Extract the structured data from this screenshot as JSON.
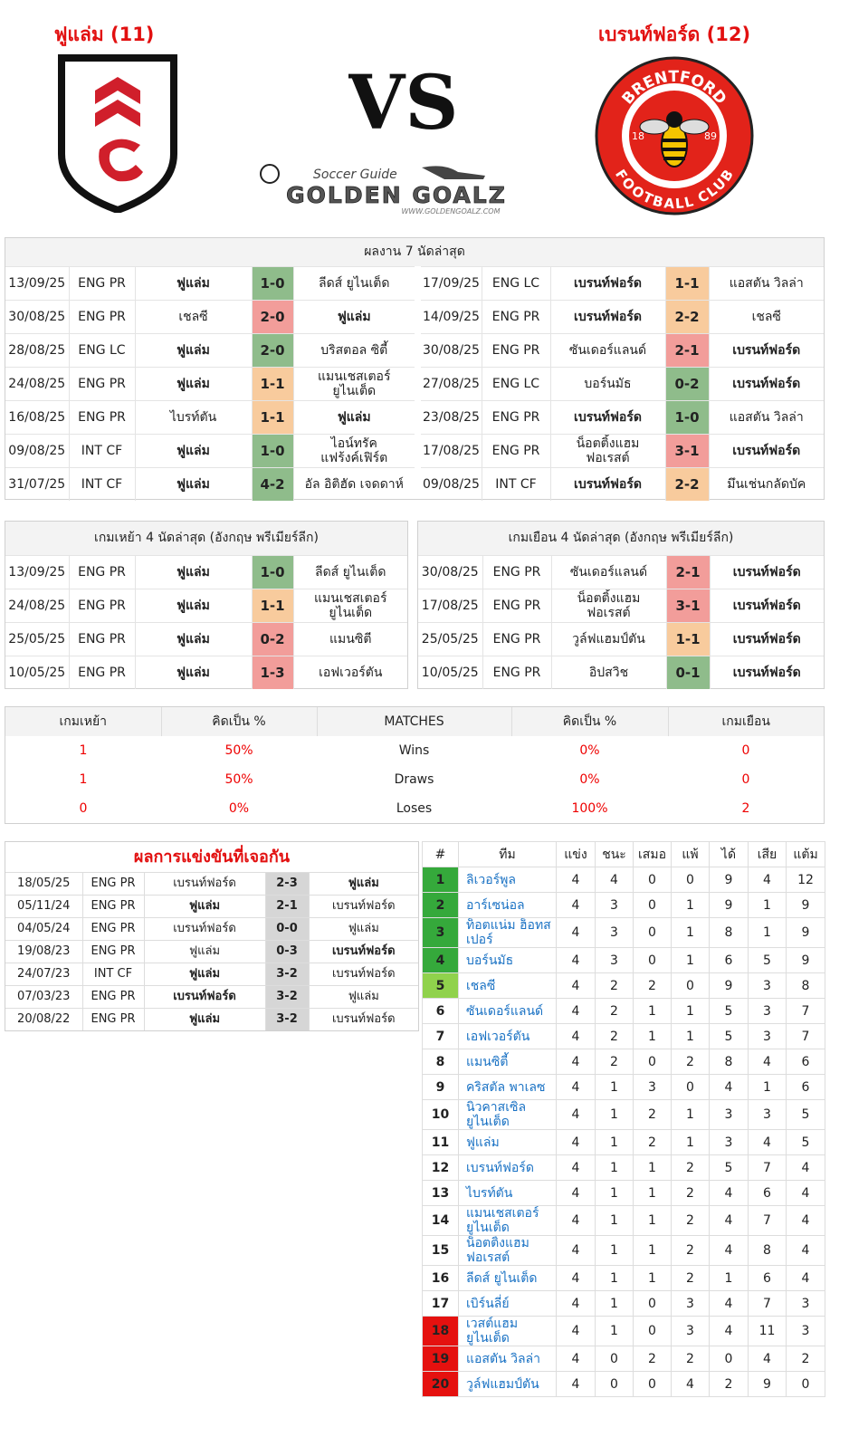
{
  "header": {
    "home_title": "ฟูแล่ม (11)",
    "away_title": "เบรนท์ฟอร์ด (12)",
    "vs": "VS",
    "logo": {
      "tagline": "Soccer Guide",
      "name": "GOLDEN GOALZ",
      "url": "WWW.GOLDENGOALZ.COM"
    },
    "away_crest": {
      "top": "BRENTFORD",
      "bottom": "FOOTBALL CLUB",
      "left": "18",
      "right": "89"
    }
  },
  "last7": {
    "title": "ผลงาน 7 นัดล่าสุด",
    "home": [
      {
        "date": "13/09/25",
        "comp": "ENG PR",
        "home": "ฟูแล่ม",
        "score": "1-0",
        "away": "ลีดส์ ยูไนเต็ด",
        "bold": "home",
        "result": "win"
      },
      {
        "date": "30/08/25",
        "comp": "ENG PR",
        "home": "เชลซี",
        "score": "2-0",
        "away": "ฟูแล่ม",
        "bold": "away",
        "result": "loss"
      },
      {
        "date": "28/08/25",
        "comp": "ENG LC",
        "home": "ฟูแล่ม",
        "score": "2-0",
        "away": "บริสตอล ซิตี้",
        "bold": "home",
        "result": "win"
      },
      {
        "date": "24/08/25",
        "comp": "ENG PR",
        "home": "ฟูแล่ม",
        "score": "1-1",
        "away": "แมนเชสเตอร์ ยูไนเต็ด",
        "bold": "home",
        "result": "draw"
      },
      {
        "date": "16/08/25",
        "comp": "ENG PR",
        "home": "ไบรท์ตัน",
        "score": "1-1",
        "away": "ฟูแล่ม",
        "bold": "away",
        "result": "draw"
      },
      {
        "date": "09/08/25",
        "comp": "INT CF",
        "home": "ฟูแล่ม",
        "score": "1-0",
        "away": "ไอน์ทรัค แฟร้งค์เฟิร์ต",
        "bold": "home",
        "result": "win"
      },
      {
        "date": "31/07/25",
        "comp": "INT CF",
        "home": "ฟูแล่ม",
        "score": "4-2",
        "away": "อัล อิติฮัด เจดดาห์",
        "bold": "home",
        "result": "win"
      }
    ],
    "away": [
      {
        "date": "17/09/25",
        "comp": "ENG LC",
        "home": "เบรนท์ฟอร์ด",
        "score": "1-1",
        "away": "แอสตัน วิลล่า",
        "bold": "home",
        "result": "draw"
      },
      {
        "date": "14/09/25",
        "comp": "ENG PR",
        "home": "เบรนท์ฟอร์ด",
        "score": "2-2",
        "away": "เชลซี",
        "bold": "home",
        "result": "draw"
      },
      {
        "date": "30/08/25",
        "comp": "ENG PR",
        "home": "ซันเดอร์แลนด์",
        "score": "2-1",
        "away": "เบรนท์ฟอร์ด",
        "bold": "away",
        "result": "loss"
      },
      {
        "date": "27/08/25",
        "comp": "ENG LC",
        "home": "บอร์นมัธ",
        "score": "0-2",
        "away": "เบรนท์ฟอร์ด",
        "bold": "away",
        "result": "win"
      },
      {
        "date": "23/08/25",
        "comp": "ENG PR",
        "home": "เบรนท์ฟอร์ด",
        "score": "1-0",
        "away": "แอสตัน วิลล่า",
        "bold": "home",
        "result": "win"
      },
      {
        "date": "17/08/25",
        "comp": "ENG PR",
        "home": "น็อตติ้งแฮม ฟอเรสต์",
        "score": "3-1",
        "away": "เบรนท์ฟอร์ด",
        "bold": "away",
        "result": "loss"
      },
      {
        "date": "09/08/25",
        "comp": "INT CF",
        "home": "เบรนท์ฟอร์ด",
        "score": "2-2",
        "away": "มึนเช่นกลัดบัค",
        "bold": "home",
        "result": "draw"
      }
    ]
  },
  "venue4": {
    "home": {
      "title": "เกมเหย้า 4 นัดล่าสุด (อังกฤษ พรีเมียร์ลีก)",
      "rows": [
        {
          "date": "13/09/25",
          "comp": "ENG PR",
          "home": "ฟูแล่ม",
          "score": "1-0",
          "away": "ลีดส์ ยูไนเต็ด",
          "bold": "home",
          "result": "win"
        },
        {
          "date": "24/08/25",
          "comp": "ENG PR",
          "home": "ฟูแล่ม",
          "score": "1-1",
          "away": "แมนเชสเตอร์ ยูไนเต็ด",
          "bold": "home",
          "result": "draw"
        },
        {
          "date": "25/05/25",
          "comp": "ENG PR",
          "home": "ฟูแล่ม",
          "score": "0-2",
          "away": "แมนซิตี",
          "bold": "home",
          "result": "loss"
        },
        {
          "date": "10/05/25",
          "comp": "ENG PR",
          "home": "ฟูแล่ม",
          "score": "1-3",
          "away": "เอฟเวอร์ตัน",
          "bold": "home",
          "result": "loss"
        }
      ]
    },
    "away": {
      "title": "เกมเยือน 4 นัดล่าสุด (อังกฤษ พรีเมียร์ลีก)",
      "rows": [
        {
          "date": "30/08/25",
          "comp": "ENG PR",
          "home": "ซันเดอร์แลนด์",
          "score": "2-1",
          "away": "เบรนท์ฟอร์ด",
          "bold": "away",
          "result": "loss"
        },
        {
          "date": "17/08/25",
          "comp": "ENG PR",
          "home": "น็อตติ้งแฮม ฟอเรสต์",
          "score": "3-1",
          "away": "เบรนท์ฟอร์ด",
          "bold": "away",
          "result": "loss"
        },
        {
          "date": "25/05/25",
          "comp": "ENG PR",
          "home": "วูล์ฟแฮมป์ตัน",
          "score": "1-1",
          "away": "เบรนท์ฟอร์ด",
          "bold": "away",
          "result": "draw"
        },
        {
          "date": "10/05/25",
          "comp": "ENG PR",
          "home": "อิปสวิช",
          "score": "0-1",
          "away": "เบรนท์ฟอร์ด",
          "bold": "away",
          "result": "win"
        }
      ]
    }
  },
  "stats": {
    "headers": [
      "เกมเหย้า",
      "คิดเป็น %",
      "MATCHES",
      "คิดเป็น %",
      "เกมเยือน"
    ],
    "rows": [
      [
        1,
        "50%",
        "Wins",
        "0%",
        0
      ],
      [
        1,
        "50%",
        "Draws",
        "0%",
        0
      ],
      [
        0,
        "0%",
        "Loses",
        "100%",
        2
      ]
    ]
  },
  "h2h": {
    "title": "ผลการแข่งขันที่เจอกัน",
    "rows": [
      {
        "date": "18/05/25",
        "comp": "ENG PR",
        "home": "เบรนท์ฟอร์ด",
        "score": "2-3",
        "away": "ฟูแล่ม",
        "bold": "away"
      },
      {
        "date": "05/11/24",
        "comp": "ENG PR",
        "home": "ฟูแล่ม",
        "score": "2-1",
        "away": "เบรนท์ฟอร์ด",
        "bold": "home"
      },
      {
        "date": "04/05/24",
        "comp": "ENG PR",
        "home": "เบรนท์ฟอร์ด",
        "score": "0-0",
        "away": "ฟูแล่ม",
        "bold": null
      },
      {
        "date": "19/08/23",
        "comp": "ENG PR",
        "home": "ฟูแล่ม",
        "score": "0-3",
        "away": "เบรนท์ฟอร์ด",
        "bold": "away"
      },
      {
        "date": "24/07/23",
        "comp": "INT CF",
        "home": "ฟูแล่ม",
        "score": "3-2",
        "away": "เบรนท์ฟอร์ด",
        "bold": "home"
      },
      {
        "date": "07/03/23",
        "comp": "ENG PR",
        "home": "เบรนท์ฟอร์ด",
        "score": "3-2",
        "away": "ฟูแล่ม",
        "bold": "home"
      },
      {
        "date": "20/08/22",
        "comp": "ENG PR",
        "home": "ฟูแล่ม",
        "score": "3-2",
        "away": "เบรนท์ฟอร์ด",
        "bold": "home"
      }
    ]
  },
  "standings": {
    "headers": [
      "#",
      "ทีม",
      "แข่ง",
      "ชนะ",
      "เสมอ",
      "แพ้",
      "ได้",
      "เสีย",
      "แต้ม"
    ],
    "rows": [
      {
        "pos": 1,
        "team": "ลิเวอร์พูล",
        "p": 4,
        "w": 4,
        "d": 0,
        "l": 0,
        "gf": 9,
        "ga": 4,
        "pts": 12,
        "zone": "cl"
      },
      {
        "pos": 2,
        "team": "อาร์เซน่อล",
        "p": 4,
        "w": 3,
        "d": 0,
        "l": 1,
        "gf": 9,
        "ga": 1,
        "pts": 9,
        "zone": "cl"
      },
      {
        "pos": 3,
        "team": "ท็อตแน่ม ฮ็อทสเปอร์",
        "p": 4,
        "w": 3,
        "d": 0,
        "l": 1,
        "gf": 8,
        "ga": 1,
        "pts": 9,
        "zone": "cl"
      },
      {
        "pos": 4,
        "team": "บอร์นมัธ",
        "p": 4,
        "w": 3,
        "d": 0,
        "l": 1,
        "gf": 6,
        "ga": 5,
        "pts": 9,
        "zone": "cl"
      },
      {
        "pos": 5,
        "team": "เชลซี",
        "p": 4,
        "w": 2,
        "d": 2,
        "l": 0,
        "gf": 9,
        "ga": 3,
        "pts": 8,
        "zone": "el"
      },
      {
        "pos": 6,
        "team": "ซันเดอร์แลนด์",
        "p": 4,
        "w": 2,
        "d": 1,
        "l": 1,
        "gf": 5,
        "ga": 3,
        "pts": 7,
        "zone": null
      },
      {
        "pos": 7,
        "team": "เอฟเวอร์ตัน",
        "p": 4,
        "w": 2,
        "d": 1,
        "l": 1,
        "gf": 5,
        "ga": 3,
        "pts": 7,
        "zone": null
      },
      {
        "pos": 8,
        "team": "แมนซิตี้",
        "p": 4,
        "w": 2,
        "d": 0,
        "l": 2,
        "gf": 8,
        "ga": 4,
        "pts": 6,
        "zone": null
      },
      {
        "pos": 9,
        "team": "คริสตัล พาเลซ",
        "p": 4,
        "w": 1,
        "d": 3,
        "l": 0,
        "gf": 4,
        "ga": 1,
        "pts": 6,
        "zone": null
      },
      {
        "pos": 10,
        "team": "นิวคาสเซิล ยูไนเต็ด",
        "p": 4,
        "w": 1,
        "d": 2,
        "l": 1,
        "gf": 3,
        "ga": 3,
        "pts": 5,
        "zone": null
      },
      {
        "pos": 11,
        "team": "ฟูแล่ม",
        "p": 4,
        "w": 1,
        "d": 2,
        "l": 1,
        "gf": 3,
        "ga": 4,
        "pts": 5,
        "zone": null
      },
      {
        "pos": 12,
        "team": "เบรนท์ฟอร์ด",
        "p": 4,
        "w": 1,
        "d": 1,
        "l": 2,
        "gf": 5,
        "ga": 7,
        "pts": 4,
        "zone": null
      },
      {
        "pos": 13,
        "team": "ไบรท์ตัน",
        "p": 4,
        "w": 1,
        "d": 1,
        "l": 2,
        "gf": 4,
        "ga": 6,
        "pts": 4,
        "zone": null
      },
      {
        "pos": 14,
        "team": "แมนเชสเตอร์ ยูไนเต็ด",
        "p": 4,
        "w": 1,
        "d": 1,
        "l": 2,
        "gf": 4,
        "ga": 7,
        "pts": 4,
        "zone": null
      },
      {
        "pos": 15,
        "team": "น็อตติ้งแฮม ฟอเรสต์",
        "p": 4,
        "w": 1,
        "d": 1,
        "l": 2,
        "gf": 4,
        "ga": 8,
        "pts": 4,
        "zone": null
      },
      {
        "pos": 16,
        "team": "ลีดส์ ยูไนเต็ด",
        "p": 4,
        "w": 1,
        "d": 1,
        "l": 2,
        "gf": 1,
        "ga": 6,
        "pts": 4,
        "zone": null
      },
      {
        "pos": 17,
        "team": "เบิร์นลี่ย์",
        "p": 4,
        "w": 1,
        "d": 0,
        "l": 3,
        "gf": 4,
        "ga": 7,
        "pts": 3,
        "zone": null
      },
      {
        "pos": 18,
        "team": "เวสต์แฮม ยูไนเต็ด",
        "p": 4,
        "w": 1,
        "d": 0,
        "l": 3,
        "gf": 4,
        "ga": 11,
        "pts": 3,
        "zone": "rel"
      },
      {
        "pos": 19,
        "team": "แอสตัน วิลล่า",
        "p": 4,
        "w": 0,
        "d": 2,
        "l": 2,
        "gf": 0,
        "ga": 4,
        "pts": 2,
        "zone": "rel"
      },
      {
        "pos": 20,
        "team": "วูล์ฟแฮมป์ตัน",
        "p": 4,
        "w": 0,
        "d": 0,
        "l": 4,
        "gf": 2,
        "ga": 9,
        "pts": 0,
        "zone": "rel"
      }
    ]
  }
}
